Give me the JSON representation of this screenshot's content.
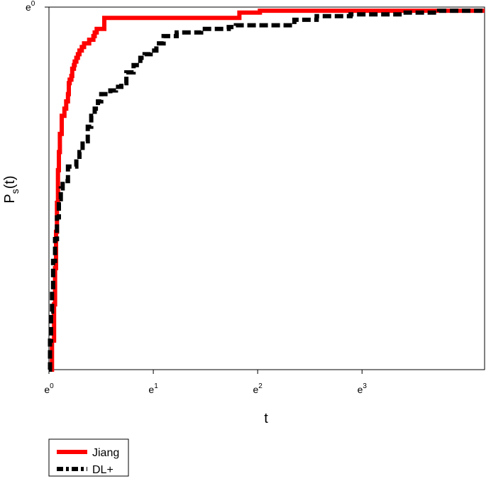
{
  "chart_data": {
    "type": "line",
    "title": "",
    "xlabel": "t",
    "ylabel_main": "P",
    "ylabel_sub": "s",
    "ylabel_paren": "(t)",
    "xscale": "log",
    "xlim": [
      1,
      65
    ],
    "ylim": [
      0,
      1
    ],
    "grid": false,
    "legend_position": "bottom-left, outside plot",
    "xticks": [
      {
        "value": 1,
        "base": "e",
        "exp": "0"
      },
      {
        "value": 2.71828,
        "base": "e",
        "exp": "1"
      },
      {
        "value": 7.38906,
        "base": "e",
        "exp": "2"
      },
      {
        "value": 20.0855,
        "base": "e",
        "exp": "3"
      }
    ],
    "yticks": [
      {
        "value": 1,
        "base": "e",
        "exp": "0"
      }
    ],
    "series": [
      {
        "name": "Jiang",
        "color": "#ff0000",
        "style": "solid",
        "x": [
          1.01,
          1.03,
          1.05,
          1.06,
          1.07,
          1.08,
          1.09,
          1.1,
          1.11,
          1.13,
          1.16,
          1.18,
          1.2,
          1.21,
          1.22,
          1.24,
          1.25,
          1.27,
          1.28,
          1.3,
          1.32,
          1.34,
          1.37,
          1.4,
          1.47,
          1.53,
          1.55,
          1.58,
          1.7,
          5.9,
          6.2,
          6.4,
          7.55,
          20.0,
          65.0
        ],
        "y": [
          0.0,
          0.08,
          0.18,
          0.28,
          0.38,
          0.46,
          0.55,
          0.6,
          0.65,
          0.7,
          0.72,
          0.74,
          0.76,
          0.79,
          0.8,
          0.81,
          0.83,
          0.84,
          0.85,
          0.86,
          0.87,
          0.88,
          0.89,
          0.9,
          0.91,
          0.92,
          0.93,
          0.94,
          0.97,
          0.97,
          0.985,
          0.985,
          0.99,
          0.99,
          0.99
        ]
      },
      {
        "name": "DL+",
        "color": "#000000",
        "style": "dashed",
        "x": [
          1.0,
          1.01,
          1.02,
          1.03,
          1.04,
          1.06,
          1.08,
          1.1,
          1.12,
          1.14,
          1.2,
          1.3,
          1.34,
          1.38,
          1.45,
          1.5,
          1.55,
          1.6,
          1.65,
          1.8,
          1.9,
          2.0,
          2.1,
          2.25,
          2.4,
          2.5,
          2.65,
          2.8,
          3.0,
          3.4,
          4.3,
          4.8,
          5.6,
          6.0,
          9.2,
          10.5,
          13.0,
          18.0,
          22.0,
          29.5,
          42.0,
          65.0
        ],
        "y": [
          0.0,
          0.08,
          0.16,
          0.22,
          0.3,
          0.36,
          0.42,
          0.47,
          0.5,
          0.52,
          0.56,
          0.58,
          0.6,
          0.63,
          0.67,
          0.7,
          0.72,
          0.74,
          0.76,
          0.77,
          0.78,
          0.79,
          0.82,
          0.84,
          0.86,
          0.87,
          0.88,
          0.9,
          0.92,
          0.93,
          0.94,
          0.94,
          0.945,
          0.95,
          0.95,
          0.965,
          0.975,
          0.98,
          0.98,
          0.985,
          0.99,
          0.99
        ]
      }
    ]
  }
}
